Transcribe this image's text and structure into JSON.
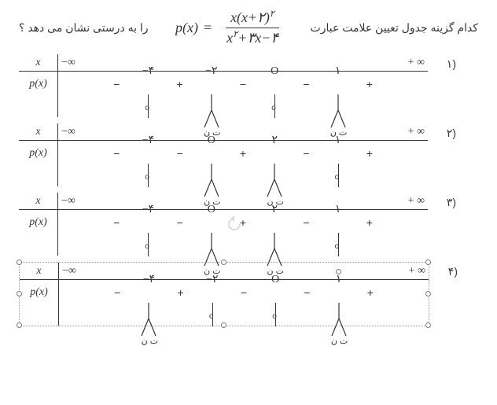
{
  "question": {
    "right_text": "کدام گزینه جدول تعیین علامت عبارت",
    "left_text": "را به درستی نشان می دهد ؟",
    "formula": {
      "lhs": "p(x)",
      "num": "x(x+۲)",
      "num_exp": "۲",
      "den": "x۲+۳x−۴",
      "den_rendered_left": "x",
      "den_exp": "۲",
      "den_rendered_right": "+۳x−۴"
    }
  },
  "labels": {
    "x": "x",
    "px": "p(x)",
    "neg_inf": "−∞",
    "pos_inf": "+ ∞",
    "undef": "ت ن"
  },
  "options": [
    {
      "num": "(۱",
      "ticks": [
        "−۴",
        "−۲",
        "O",
        "۱"
      ],
      "cells": [
        "−",
        "+",
        "−",
        "−",
        "+"
      ],
      "markers": [
        "zero",
        "asym",
        "zero",
        "asym"
      ]
    },
    {
      "num": "(۲",
      "ticks": [
        "−۴",
        "O",
        "۲",
        "۱"
      ],
      "cells": [
        "−",
        "−",
        "+",
        "−",
        "+"
      ],
      "markers": [
        "zero",
        "asym",
        "asym",
        "zero"
      ]
    },
    {
      "num": "(۳",
      "ticks": [
        "−۴",
        "O",
        "۲",
        "۱"
      ],
      "cells": [
        "−",
        "−",
        "+",
        "−",
        "+"
      ],
      "markers": [
        "zero",
        "asym",
        "asym",
        "zero"
      ],
      "watermark": true
    },
    {
      "num": "(۴",
      "ticks": [
        "−۴",
        "−۲",
        "O",
        "۱"
      ],
      "cells": [
        "−",
        "+",
        "−",
        "−",
        "+"
      ],
      "markers": [
        "asym",
        "zero",
        "zero",
        "asym"
      ],
      "selected": true
    }
  ]
}
